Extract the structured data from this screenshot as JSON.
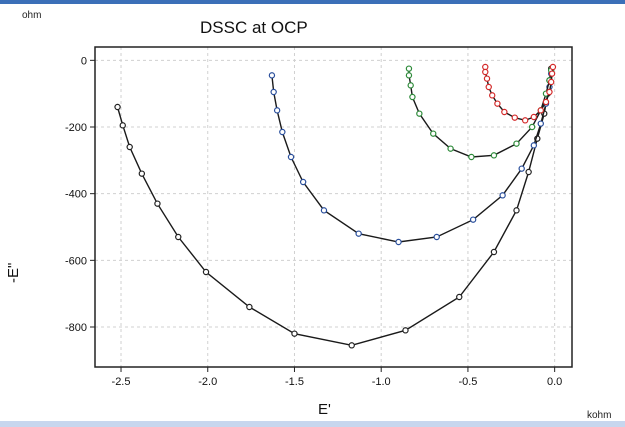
{
  "chart_data": {
    "type": "scatter",
    "title": "DSSC at OCP",
    "xlabel": "E'",
    "ylabel": "-E\"",
    "x_unit": "kohm",
    "y_unit": "ohm",
    "xlim": [
      -2.65,
      0.1
    ],
    "ylim": [
      -920,
      40
    ],
    "x_ticks": [
      "-2.5",
      "-2.0",
      "-1.5",
      "-1.0",
      "-0.5",
      "0.0"
    ],
    "x_tick_values": [
      -2.5,
      -2.0,
      -1.5,
      -1.0,
      -0.5,
      0.0
    ],
    "y_ticks": [
      "0",
      "-200",
      "-400",
      "-600",
      "-800"
    ],
    "y_tick_values": [
      0,
      -200,
      -400,
      -600,
      -800
    ],
    "grid": true,
    "series": [
      {
        "color": "#222222",
        "points": [
          [
            -2.52,
            -140
          ],
          [
            -2.49,
            -195
          ],
          [
            -2.45,
            -260
          ],
          [
            -2.38,
            -340
          ],
          [
            -2.29,
            -430
          ],
          [
            -2.17,
            -530
          ],
          [
            -2.01,
            -635
          ],
          [
            -1.76,
            -740
          ],
          [
            -1.5,
            -820
          ],
          [
            -1.17,
            -855
          ],
          [
            -0.86,
            -810
          ],
          [
            -0.55,
            -710
          ],
          [
            -0.35,
            -575
          ],
          [
            -0.22,
            -450
          ],
          [
            -0.15,
            -335
          ],
          [
            -0.1,
            -235
          ],
          [
            -0.06,
            -160
          ],
          [
            -0.04,
            -100
          ],
          [
            -0.03,
            -60
          ],
          [
            -0.02,
            -25
          ]
        ]
      },
      {
        "color": "#2a4f9c",
        "points": [
          [
            -1.63,
            -45
          ],
          [
            -1.62,
            -95
          ],
          [
            -1.6,
            -150
          ],
          [
            -1.57,
            -215
          ],
          [
            -1.52,
            -290
          ],
          [
            -1.45,
            -365
          ],
          [
            -1.33,
            -450
          ],
          [
            -1.13,
            -520
          ],
          [
            -0.9,
            -545
          ],
          [
            -0.68,
            -530
          ],
          [
            -0.47,
            -478
          ],
          [
            -0.3,
            -405
          ],
          [
            -0.19,
            -325
          ],
          [
            -0.12,
            -255
          ],
          [
            -0.08,
            -190
          ],
          [
            -0.05,
            -130
          ],
          [
            -0.03,
            -80
          ],
          [
            -0.02,
            -40
          ]
        ]
      },
      {
        "color": "#2e8b3a",
        "points": [
          [
            -0.84,
            -25
          ],
          [
            -0.84,
            -45
          ],
          [
            -0.83,
            -75
          ],
          [
            -0.82,
            -110
          ],
          [
            -0.78,
            -160
          ],
          [
            -0.7,
            -220
          ],
          [
            -0.6,
            -265
          ],
          [
            -0.48,
            -290
          ],
          [
            -0.35,
            -285
          ],
          [
            -0.22,
            -250
          ],
          [
            -0.13,
            -200
          ],
          [
            -0.08,
            -150
          ],
          [
            -0.05,
            -100
          ],
          [
            -0.03,
            -60
          ],
          [
            -0.02,
            -30
          ]
        ]
      },
      {
        "color": "#d42a2a",
        "points": [
          [
            -0.4,
            -20
          ],
          [
            -0.4,
            -35
          ],
          [
            -0.39,
            -55
          ],
          [
            -0.38,
            -80
          ],
          [
            -0.36,
            -105
          ],
          [
            -0.33,
            -130
          ],
          [
            -0.29,
            -155
          ],
          [
            -0.23,
            -172
          ],
          [
            -0.17,
            -180
          ],
          [
            -0.12,
            -170
          ],
          [
            -0.08,
            -150
          ],
          [
            -0.05,
            -125
          ],
          [
            -0.03,
            -95
          ],
          [
            -0.02,
            -65
          ],
          [
            -0.015,
            -40
          ],
          [
            -0.01,
            -20
          ]
        ]
      }
    ]
  }
}
